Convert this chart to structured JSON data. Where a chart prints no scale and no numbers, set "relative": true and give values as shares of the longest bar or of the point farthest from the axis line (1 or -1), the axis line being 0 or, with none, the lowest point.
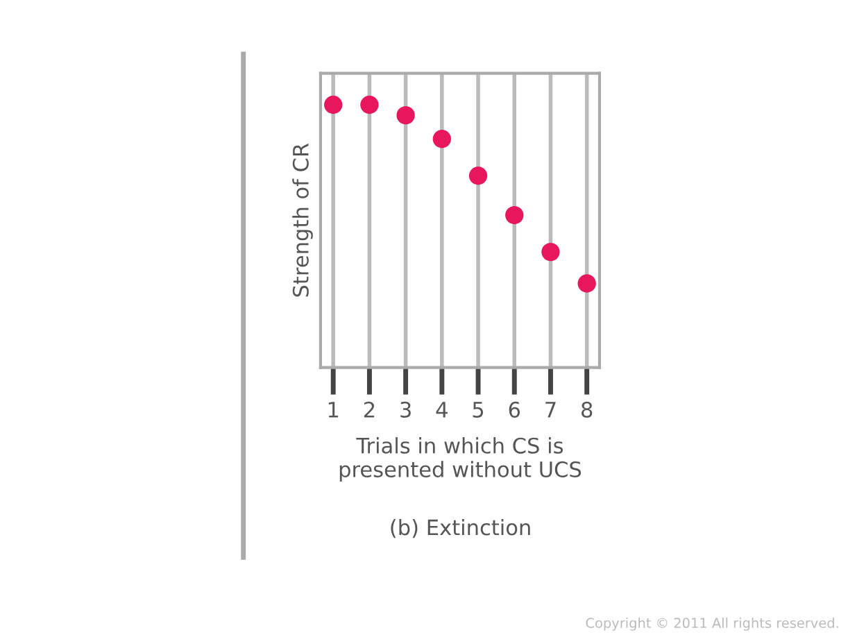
{
  "chart_data": {
    "type": "scatter",
    "relative": true,
    "categories": [
      "1",
      "2",
      "3",
      "4",
      "5",
      "6",
      "7",
      "8"
    ],
    "values": [
      1,
      1,
      0.96,
      0.87,
      0.73,
      0.58,
      0.44,
      0.32
    ],
    "color": "#e8175d",
    "marker": "circle",
    "grid": "x",
    "xlabel": "Trials in which CS is\npresented without UCS",
    "ylabel": "Strength of CR",
    "annotations": [
      "(b) Extinction",
      "Copyright © 2011 All rights reserved."
    ]
  }
}
